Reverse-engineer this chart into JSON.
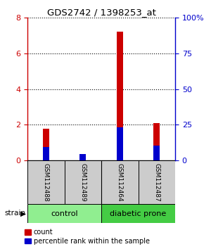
{
  "title": "GDS2742 / 1398253_at",
  "samples": [
    "GSM112488",
    "GSM112489",
    "GSM112464",
    "GSM112487"
  ],
  "count_values": [
    1.8,
    0.3,
    7.2,
    2.1
  ],
  "percentile_display": [
    0.75,
    0.35,
    1.85,
    0.85
  ],
  "groups": [
    {
      "label": "control",
      "samples": [
        0,
        1
      ],
      "color": "#90EE90"
    },
    {
      "label": "diabetic prone",
      "samples": [
        2,
        3
      ],
      "color": "#44CC44"
    }
  ],
  "ylim_left": [
    0,
    8
  ],
  "ylim_right": [
    0,
    100
  ],
  "yticks_left": [
    0,
    2,
    4,
    6,
    8
  ],
  "yticks_right": [
    0,
    25,
    50,
    75,
    100
  ],
  "count_color": "#CC0000",
  "percentile_color": "#0000CC",
  "bg_color": "#FFFFFF",
  "left_tick_color": "#CC0000",
  "right_tick_color": "#0000CC",
  "sample_label_bg": "#CCCCCC"
}
